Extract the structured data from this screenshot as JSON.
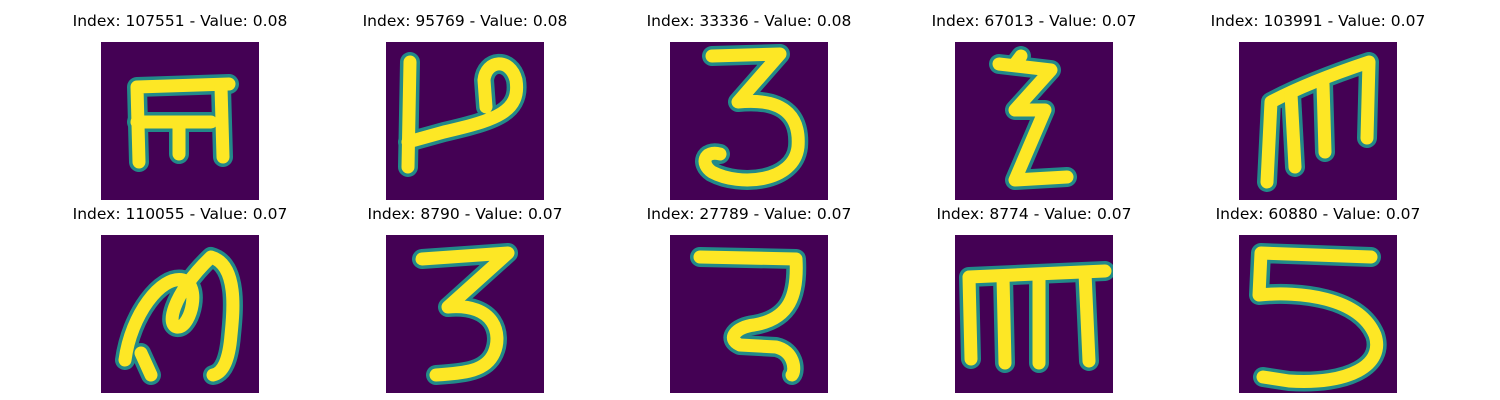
{
  "panels": [
    {
      "title": "Index: 107551 - Value: 0.08",
      "glyph": "E-like character"
    },
    {
      "title": "Index: 95769 - Value: 0.08",
      "glyph": "P-like character"
    },
    {
      "title": "Index: 33336 - Value: 0.08",
      "glyph": "3-like character"
    },
    {
      "title": "Index: 67013 - Value: 0.07",
      "glyph": "Z-like character"
    },
    {
      "title": "Index: 103991 - Value: 0.07",
      "glyph": "m-like character"
    },
    {
      "title": "Index: 110055 - Value: 0.07",
      "glyph": "M-like character"
    },
    {
      "title": "Index: 8790 - Value: 0.07",
      "glyph": "3-like character"
    },
    {
      "title": "Index: 27789 - Value: 0.07",
      "glyph": "2-like character"
    },
    {
      "title": "Index: 8774 - Value: 0.07",
      "glyph": "m-like character"
    },
    {
      "title": "Index: 60880 - Value: 0.07",
      "glyph": "5-like character"
    }
  ],
  "colors": {
    "background": "#440154",
    "stroke": "#fde725",
    "edge": "#21918c"
  }
}
